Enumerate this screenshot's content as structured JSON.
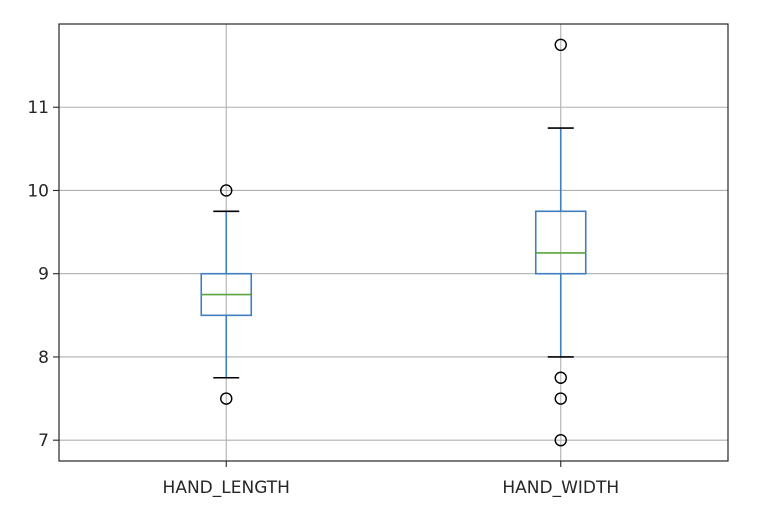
{
  "chart_data": {
    "type": "boxplot",
    "title": "",
    "xlabel": "",
    "ylabel": "",
    "ylim": [
      6.75,
      12.0
    ],
    "yticks": [
      7,
      8,
      9,
      10,
      11
    ],
    "grid": true,
    "categories": [
      "HAND_LENGTH",
      "HAND_WIDTH"
    ],
    "boxes": [
      {
        "name": "HAND_LENGTH",
        "whislo": 7.75,
        "q1": 8.5,
        "med": 8.75,
        "q3": 9.0,
        "whishi": 9.75,
        "fliers": [
          10.0,
          7.5
        ]
      },
      {
        "name": "HAND_WIDTH",
        "whislo": 8.0,
        "q1": 9.0,
        "med": 9.25,
        "q3": 9.75,
        "whishi": 10.75,
        "fliers": [
          11.75,
          7.75,
          7.5,
          7.0
        ]
      }
    ],
    "colors": {
      "box": "#3f7fbf",
      "median": "#5ca43c",
      "cap": "#000000",
      "grid": "#b0b0b0",
      "flier": "#000000"
    }
  }
}
